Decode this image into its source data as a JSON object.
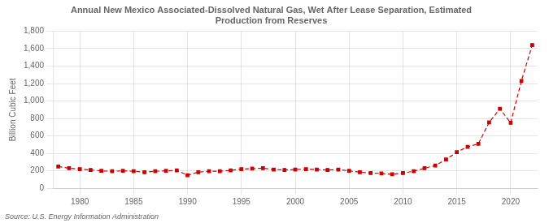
{
  "chart_data": {
    "type": "line",
    "title": "Annual New Mexico Associated-Dissolved Natural Gas, Wet After Lease Separation, Estimated\nProduction from Reserves",
    "ylabel": "Billion Cubic Feet",
    "source": "Source: U.S. Energy Information Administration",
    "x": [
      1978,
      1979,
      1980,
      1981,
      1982,
      1983,
      1984,
      1985,
      1986,
      1987,
      1988,
      1989,
      1990,
      1991,
      1992,
      1993,
      1994,
      1995,
      1996,
      1997,
      1998,
      1999,
      2000,
      2001,
      2002,
      2003,
      2004,
      2005,
      2006,
      2007,
      2008,
      2009,
      2010,
      2011,
      2012,
      2013,
      2014,
      2015,
      2016,
      2017,
      2018,
      2019,
      2020,
      2021,
      2022
    ],
    "values": [
      250,
      230,
      220,
      210,
      200,
      195,
      200,
      195,
      185,
      195,
      200,
      205,
      150,
      185,
      195,
      195,
      205,
      220,
      225,
      230,
      215,
      210,
      215,
      220,
      215,
      210,
      215,
      200,
      185,
      175,
      170,
      160,
      175,
      195,
      230,
      260,
      330,
      415,
      475,
      510,
      755,
      910,
      750,
      1230,
      1640
    ],
    "color": "#cc0000",
    "marker": "square",
    "line_style": "dashed",
    "xlim": [
      1977.5,
      2022.5
    ],
    "xticks": [
      1980,
      1985,
      1990,
      1995,
      2000,
      2005,
      2010,
      2015,
      2020
    ],
    "ylim": [
      0,
      1800
    ],
    "yticks": [
      0,
      200,
      400,
      600,
      800,
      {
        "value": 1000,
        "label": "1,000"
      },
      {
        "value": 1200,
        "label": "1,200"
      },
      {
        "value": 1400,
        "label": "1,400"
      },
      {
        "value": 1600,
        "label": "1,600"
      },
      {
        "value": 1800,
        "label": "1,800"
      }
    ],
    "grid": true
  }
}
